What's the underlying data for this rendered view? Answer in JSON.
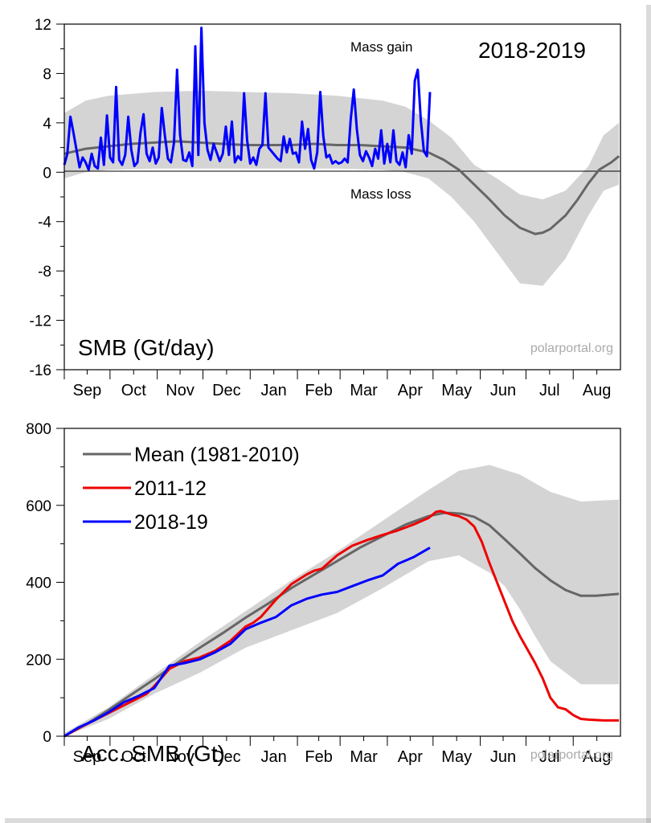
{
  "chart_data": [
    {
      "type": "line",
      "title": "SMB (Gt/day)",
      "season_label": "2018-2019",
      "credit": "polarportal.org",
      "annotations": {
        "gain": "Mass gain",
        "loss": "Mass loss"
      },
      "months": [
        "Sep",
        "Oct",
        "Nov",
        "Dec",
        "Jan",
        "Feb",
        "Mar",
        "Apr",
        "May",
        "Jun",
        "Jul",
        "Aug"
      ],
      "x_unit": "day of season (1 = 1 Sep)",
      "ylim": [
        -16,
        12
      ],
      "yticks": [
        -16,
        -12,
        -8,
        -4,
        0,
        4,
        8,
        12
      ],
      "grid": false,
      "colors": {
        "mean": "#666666",
        "band": "#d4d4d4",
        "current": "#0000ff"
      },
      "mean": {
        "x": [
          1,
          15,
          30,
          45,
          60,
          75,
          90,
          105,
          120,
          135,
          150,
          165,
          180,
          195,
          210,
          225,
          240,
          250,
          260,
          270,
          280,
          290,
          300,
          310,
          315,
          320,
          330,
          338,
          345,
          352,
          360,
          365
        ],
        "y": [
          1.5,
          1.9,
          2.1,
          2.3,
          2.4,
          2.5,
          2.4,
          2.3,
          2.2,
          2.2,
          2.2,
          2.3,
          2.2,
          2.2,
          2.1,
          2.0,
          1.6,
          1.0,
          0.2,
          -1.0,
          -2.2,
          -3.5,
          -4.5,
          -5.0,
          -4.9,
          -4.6,
          -3.5,
          -2.2,
          -0.9,
          0.2,
          0.8,
          1.3
        ]
      },
      "band_upper": {
        "x": [
          1,
          15,
          30,
          60,
          90,
          120,
          150,
          180,
          210,
          225,
          240,
          255,
          270,
          285,
          300,
          315,
          330,
          345,
          355,
          365
        ],
        "y": [
          4.8,
          5.8,
          6.2,
          6.5,
          6.6,
          6.5,
          6.4,
          6.2,
          5.8,
          5.3,
          4.2,
          2.8,
          0.6,
          -0.5,
          -1.8,
          -2.2,
          -1.5,
          0.5,
          3.0,
          4.0
        ]
      },
      "band_lower": {
        "x": [
          1,
          15,
          30,
          60,
          90,
          120,
          150,
          180,
          210,
          225,
          240,
          255,
          270,
          285,
          300,
          315,
          330,
          345,
          355,
          365
        ],
        "y": [
          -0.5,
          0.0,
          0.2,
          0.3,
          0.3,
          0.3,
          0.3,
          0.3,
          0.2,
          0.0,
          -0.5,
          -2.0,
          -4.0,
          -6.5,
          -9.0,
          -9.2,
          -7.0,
          -3.5,
          -1.5,
          -1.0
        ]
      },
      "current": {
        "name": "2018-19",
        "x": [
          1,
          3,
          5,
          7,
          9,
          11,
          13,
          15,
          17,
          19,
          21,
          23,
          25,
          27,
          29,
          31,
          33,
          35,
          37,
          39,
          41,
          43,
          45,
          47,
          49,
          51,
          53,
          55,
          57,
          59,
          61,
          63,
          65,
          67,
          69,
          71,
          73,
          75,
          77,
          79,
          81,
          83,
          85,
          87,
          89,
          91,
          93,
          95,
          97,
          99,
          101,
          103,
          105,
          107,
          109,
          111,
          113,
          115,
          117,
          119,
          121,
          123,
          125,
          127,
          129,
          131,
          133,
          135,
          137,
          139,
          141,
          143,
          145,
          147,
          149,
          151,
          153,
          155,
          157,
          159,
          161,
          163,
          165,
          167,
          169,
          171,
          173,
          175,
          177,
          179,
          181,
          183,
          185,
          187,
          189,
          191,
          193,
          195,
          197,
          199,
          201,
          203,
          205,
          207,
          209,
          211,
          213,
          215,
          217,
          219,
          221,
          223,
          225,
          227,
          229,
          231,
          233,
          235,
          237,
          239,
          241
        ],
        "y": [
          0.6,
          1.5,
          4.5,
          3.2,
          1.8,
          0.4,
          1.2,
          0.8,
          0.2,
          1.5,
          0.5,
          0.3,
          2.8,
          0.6,
          4.6,
          1.2,
          0.8,
          6.9,
          1.0,
          0.6,
          1.4,
          4.5,
          1.8,
          0.5,
          0.8,
          3.2,
          4.7,
          1.5,
          0.9,
          2.0,
          0.7,
          1.2,
          5.2,
          3.0,
          1.1,
          0.8,
          2.4,
          8.3,
          3.0,
          1.0,
          0.9,
          1.6,
          0.5,
          10.2,
          1.4,
          11.7,
          4.0,
          1.8,
          1.0,
          2.3,
          1.6,
          0.9,
          1.5,
          3.7,
          1.4,
          4.1,
          0.8,
          1.3,
          1.0,
          6.4,
          2.6,
          0.7,
          1.2,
          0.6,
          1.9,
          2.2,
          6.4,
          2.0,
          1.7,
          1.4,
          1.1,
          0.9,
          2.9,
          1.6,
          2.7,
          1.5,
          1.6,
          0.8,
          4.1,
          1.9,
          3.5,
          1.0,
          0.3,
          1.6,
          6.5,
          2.9,
          1.2,
          1.4,
          0.7,
          0.9,
          0.7,
          0.8,
          1.1,
          0.8,
          4.3,
          6.7,
          3.5,
          1.4,
          0.9,
          1.7,
          1.2,
          0.5,
          1.9,
          1.1,
          3.4,
          0.7,
          2.3,
          0.8,
          3.4,
          0.9,
          0.6,
          1.6,
          0.4,
          3.0,
          1.5,
          7.4,
          8.3,
          4.2,
          1.7,
          1.3,
          6.5
        ]
      }
    },
    {
      "type": "line",
      "title": "Acc. SMB (Gt)",
      "credit": "polarportal.org",
      "months": [
        "Sep",
        "Oct",
        "Nov",
        "Dec",
        "Jan",
        "Feb",
        "Mar",
        "Apr",
        "May",
        "Jun",
        "Jul",
        "Aug"
      ],
      "x_unit": "day of season (1 = 1 Sep)",
      "ylim": [
        0,
        800
      ],
      "yticks": [
        0,
        200,
        400,
        600,
        800
      ],
      "grid": false,
      "legend": {
        "placement": "top-left",
        "entries": [
          {
            "label": "Mean (1981-2010)",
            "color": "#666666"
          },
          {
            "label": "2011-12",
            "color": "#ee0000"
          },
          {
            "label": "2018-19",
            "color": "#0000ff"
          }
        ]
      },
      "colors": {
        "band": "#d4d4d4"
      },
      "band_upper": {
        "x": [
          1,
          30,
          60,
          90,
          120,
          150,
          180,
          210,
          240,
          260,
          280,
          300,
          320,
          340,
          365
        ],
        "y": [
          8,
          75,
          160,
          245,
          325,
          405,
          480,
          560,
          640,
          690,
          705,
          680,
          635,
          610,
          615
        ]
      },
      "band_lower": {
        "x": [
          1,
          30,
          60,
          90,
          120,
          150,
          180,
          210,
          240,
          260,
          280,
          290,
          300,
          310,
          320,
          340,
          365
        ],
        "y": [
          0,
          45,
          110,
          165,
          230,
          275,
          320,
          385,
          455,
          470,
          425,
          390,
          330,
          260,
          195,
          135,
          135
        ]
      },
      "series": [
        {
          "name": "Mean (1981-2010)",
          "color": "#666666",
          "x": [
            1,
            15,
            30,
            45,
            60,
            75,
            90,
            105,
            120,
            135,
            150,
            165,
            180,
            195,
            210,
            225,
            240,
            250,
            255,
            262,
            270,
            280,
            290,
            300,
            310,
            320,
            330,
            340,
            350,
            365
          ],
          "y": [
            0,
            30,
            68,
            108,
            148,
            190,
            230,
            268,
            308,
            345,
            385,
            420,
            455,
            490,
            520,
            550,
            572,
            580,
            580,
            578,
            570,
            548,
            512,
            475,
            437,
            405,
            380,
            365,
            365,
            370
          ]
        },
        {
          "name": "2011-12",
          "color": "#ee0000",
          "x": [
            1,
            10,
            20,
            30,
            40,
            50,
            55,
            60,
            70,
            80,
            90,
            100,
            110,
            120,
            125,
            130,
            140,
            150,
            160,
            165,
            170,
            180,
            190,
            200,
            210,
            220,
            230,
            240,
            245,
            248,
            252,
            256,
            260,
            265,
            270,
            275,
            280,
            285,
            290,
            295,
            300,
            305,
            310,
            315,
            320,
            325,
            330,
            335,
            340,
            345,
            350,
            355,
            360,
            365
          ],
          "y": [
            0,
            20,
            40,
            60,
            80,
            100,
            110,
            130,
            175,
            195,
            205,
            222,
            248,
            285,
            295,
            310,
            355,
            395,
            420,
            430,
            435,
            470,
            495,
            510,
            523,
            535,
            550,
            567,
            583,
            585,
            580,
            575,
            572,
            563,
            545,
            505,
            450,
            400,
            350,
            300,
            260,
            225,
            190,
            150,
            100,
            75,
            70,
            55,
            45,
            43,
            42,
            41,
            41,
            41
          ]
        },
        {
          "name": "2018-19",
          "color": "#0000ff",
          "x": [
            1,
            10,
            20,
            30,
            40,
            50,
            55,
            60,
            70,
            80,
            90,
            100,
            110,
            120,
            130,
            140,
            150,
            160,
            170,
            180,
            190,
            200,
            210,
            220,
            230,
            241
          ],
          "y": [
            0,
            22,
            40,
            62,
            88,
            105,
            115,
            125,
            183,
            190,
            200,
            218,
            240,
            278,
            295,
            310,
            340,
            357,
            368,
            375,
            390,
            405,
            418,
            448,
            465,
            490
          ]
        }
      ]
    }
  ]
}
